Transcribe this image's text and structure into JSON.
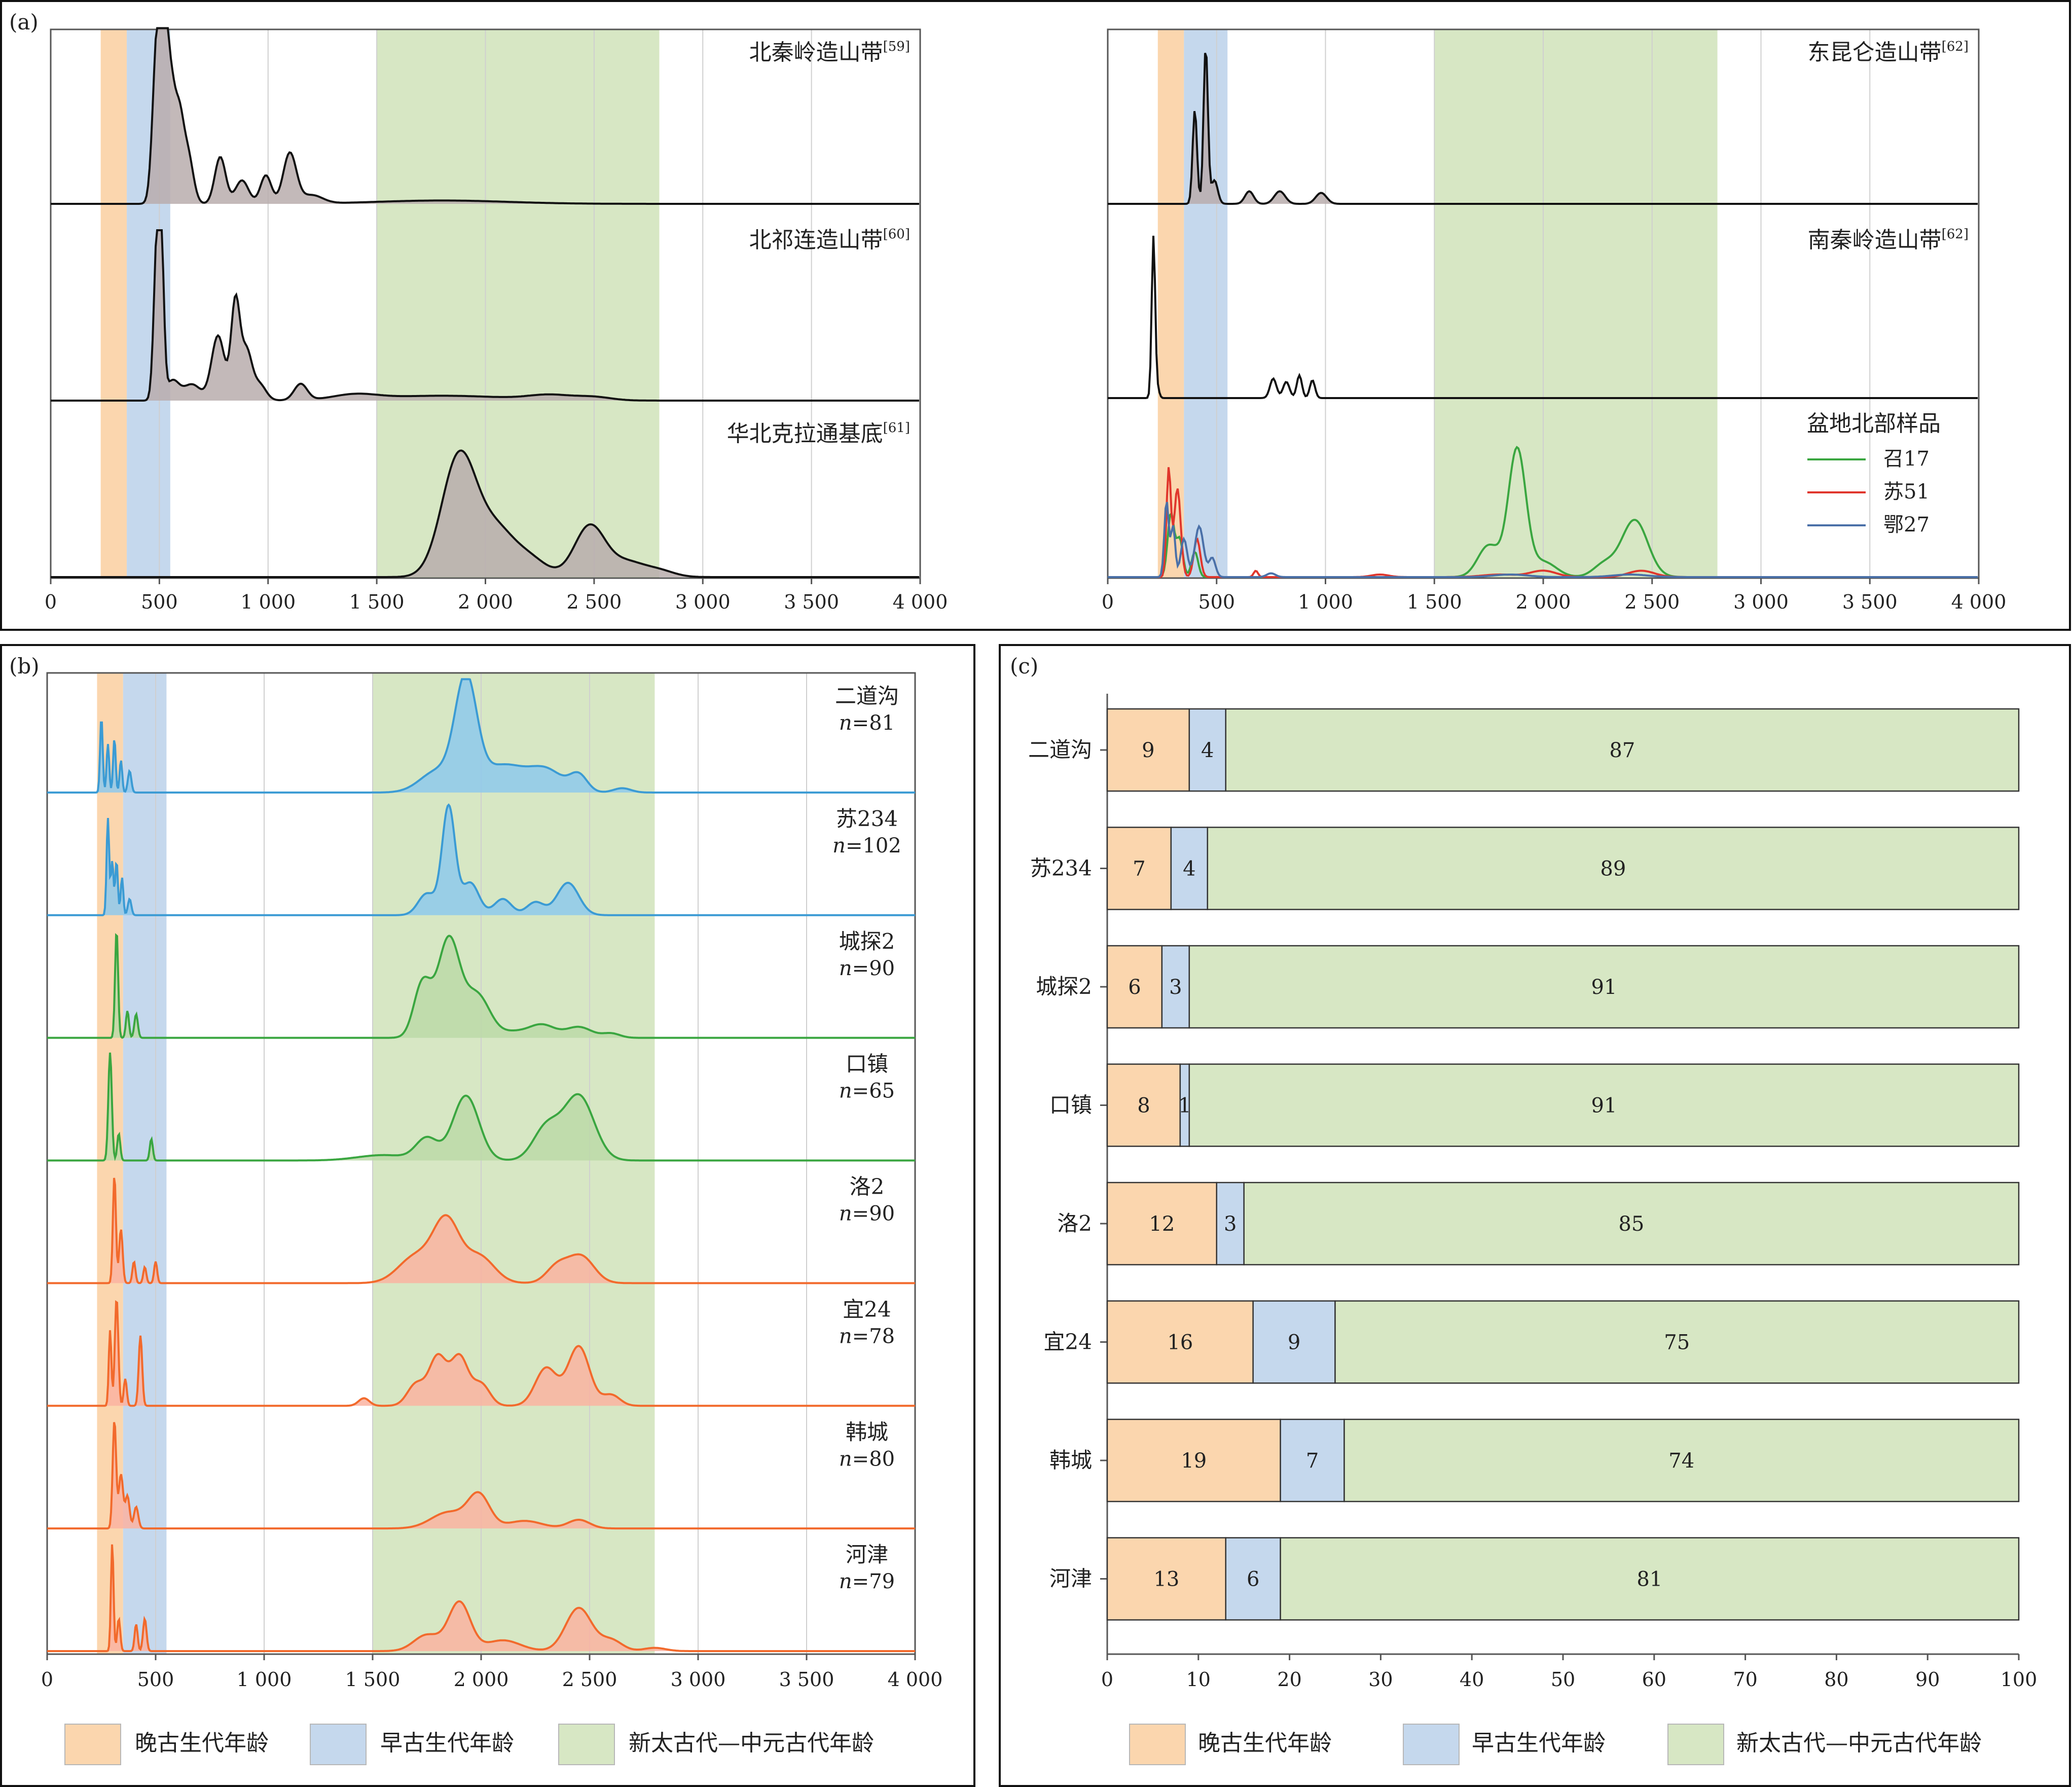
{
  "panels": {
    "a": {
      "label": "(a)"
    },
    "b": {
      "label": "(b)"
    },
    "c": {
      "label": "(c)"
    }
  },
  "age_axis": {
    "range": [
      0,
      4000
    ],
    "ticks": [
      0,
      500,
      1000,
      1500,
      2000,
      2500,
      3000,
      3500,
      4000
    ],
    "tick_labels": [
      "0",
      "500",
      "1 000",
      "1 500",
      "2 000",
      "2 500",
      "3 000",
      "3 500",
      "4 000"
    ],
    "bands": [
      {
        "name": "晚古生代年龄",
        "range": [
          230,
          350
        ],
        "color": "#fbd6ae"
      },
      {
        "name": "早古生代年龄",
        "range": [
          350,
          550
        ],
        "color": "#c5d8ed"
      },
      {
        "name": "新太古代—中元古代年龄",
        "range": [
          1500,
          2800
        ],
        "color": "#d7e7c4"
      }
    ]
  },
  "legend_bottom": {
    "items": [
      "晚古生代年龄",
      "早古生代年龄",
      "新太古代—中元古代年龄"
    ],
    "colors": [
      "#fbd6ae",
      "#c5d8ed",
      "#d7e7c4"
    ]
  },
  "chart_data": [
    {
      "id": "a-left",
      "type": "area",
      "x_range": [
        0,
        4000
      ],
      "series": [
        {
          "name": "北秦岭造山带",
          "ref": "[59]",
          "color": "#b8adad",
          "peaks": [
            [
              490,
              20,
              1.0
            ],
            [
              520,
              15,
              0.95
            ],
            [
              550,
              20,
              0.7
            ],
            [
              590,
              20,
              0.45
            ],
            [
              630,
              25,
              0.3
            ],
            [
              780,
              25,
              0.28
            ],
            [
              880,
              30,
              0.14
            ],
            [
              990,
              25,
              0.17
            ],
            [
              1100,
              30,
              0.3
            ],
            [
              1200,
              50,
              0.05
            ],
            [
              1800,
              300,
              0.02
            ]
          ]
        },
        {
          "name": "北祁连造山带",
          "ref": "[60]",
          "color": "#b8adad",
          "peaks": [
            [
              490,
              15,
              1.0
            ],
            [
              510,
              12,
              0.7
            ],
            [
              560,
              30,
              0.12
            ],
            [
              650,
              40,
              0.1
            ],
            [
              770,
              30,
              0.4
            ],
            [
              850,
              20,
              0.6
            ],
            [
              900,
              25,
              0.3
            ],
            [
              960,
              30,
              0.1
            ],
            [
              1150,
              30,
              0.1
            ],
            [
              1400,
              100,
              0.03
            ],
            [
              1800,
              300,
              0.03
            ],
            [
              2300,
              100,
              0.03
            ],
            [
              2500,
              80,
              0.02
            ]
          ]
        },
        {
          "name": "华北克拉通基底",
          "ref": "[61]",
          "color": "#b8adad",
          "peaks": [
            [
              1880,
              80,
              1.0
            ],
            [
              2050,
              80,
              0.35
            ],
            [
              2200,
              80,
              0.15
            ],
            [
              2480,
              70,
              0.42
            ],
            [
              2650,
              80,
              0.12
            ],
            [
              2800,
              70,
              0.05
            ]
          ]
        }
      ]
    },
    {
      "id": "a-right",
      "type": "area",
      "x_range": [
        0,
        4000
      ],
      "series": [
        {
          "name": "东昆仑造山带",
          "ref": "[62]",
          "color": "#b8adad",
          "peaks": [
            [
              400,
              10,
              0.6
            ],
            [
              450,
              10,
              1.0
            ],
            [
              490,
              15,
              0.15
            ],
            [
              650,
              20,
              0.08
            ],
            [
              790,
              25,
              0.08
            ],
            [
              980,
              25,
              0.07
            ]
          ]
        },
        {
          "name": "南秦岭造山带",
          "ref": "[62]",
          "color": "#ffffff",
          "peaks": [
            [
              210,
              8,
              1.0
            ],
            [
              230,
              8,
              0.05
            ],
            [
              760,
              15,
              0.12
            ],
            [
              820,
              15,
              0.1
            ],
            [
              880,
              12,
              0.14
            ],
            [
              940,
              12,
              0.11
            ]
          ]
        }
      ],
      "legend": {
        "title": "盆地北部样品",
        "series": [
          {
            "name": "召17",
            "color": "#3aa640",
            "peaks": [
              [
                290,
                15,
                0.5
              ],
              [
                330,
                15,
                0.3
              ],
              [
                400,
                15,
                0.2
              ],
              [
                1750,
                50,
                0.25
              ],
              [
                1880,
                40,
                1.0
              ],
              [
                2000,
                60,
                0.12
              ],
              [
                2280,
                50,
                0.1
              ],
              [
                2420,
                60,
                0.45
              ]
            ]
          },
          {
            "name": "苏51",
            "color": "#e0362c",
            "peaks": [
              [
                280,
                10,
                0.85
              ],
              [
                320,
                15,
                0.7
              ],
              [
                410,
                15,
                0.3
              ],
              [
                680,
                10,
                0.05
              ],
              [
                1250,
                40,
                0.02
              ],
              [
                1800,
                80,
                0.02
              ],
              [
                2000,
                60,
                0.05
              ],
              [
                2450,
                60,
                0.05
              ]
            ]
          },
          {
            "name": "鄂27",
            "color": "#4a70a8",
            "peaks": [
              [
                270,
                10,
                0.6
              ],
              [
                300,
                10,
                0.4
              ],
              [
                350,
                15,
                0.3
              ],
              [
                420,
                20,
                0.4
              ],
              [
                480,
                15,
                0.15
              ],
              [
                750,
                20,
                0.03
              ],
              [
                1850,
                80,
                0.02
              ],
              [
                2400,
                80,
                0.02
              ]
            ]
          }
        ]
      }
    },
    {
      "id": "b",
      "type": "area",
      "x_range": [
        0,
        4000
      ],
      "series": [
        {
          "name": "二道沟",
          "n": "=81",
          "color": "#3b9bd4",
          "fill": "#8ec9ec",
          "peaks": [
            [
              250,
              6,
              0.7
            ],
            [
              280,
              6,
              0.45
            ],
            [
              310,
              6,
              0.5
            ],
            [
              340,
              6,
              0.3
            ],
            [
              380,
              8,
              0.2
            ],
            [
              1800,
              80,
              0.2
            ],
            [
              1930,
              50,
              1.0
            ],
            [
              2100,
              100,
              0.25
            ],
            [
              2300,
              80,
              0.2
            ],
            [
              2450,
              40,
              0.15
            ],
            [
              2650,
              40,
              0.04
            ]
          ]
        },
        {
          "name": "苏234",
          "n": "=102",
          "color": "#3b9bd4",
          "fill": "#8ec9ec",
          "peaks": [
            [
              280,
              6,
              0.9
            ],
            [
              300,
              6,
              0.5
            ],
            [
              320,
              6,
              0.5
            ],
            [
              345,
              6,
              0.35
            ],
            [
              380,
              8,
              0.15
            ],
            [
              1750,
              40,
              0.2
            ],
            [
              1850,
              30,
              1.0
            ],
            [
              1950,
              40,
              0.3
            ],
            [
              2100,
              40,
              0.15
            ],
            [
              2250,
              40,
              0.12
            ],
            [
              2400,
              50,
              0.3
            ]
          ]
        },
        {
          "name": "城探2",
          "n": "=90",
          "color": "#3aa640",
          "fill": "#bcd9a8",
          "peaks": [
            [
              320,
              7,
              1.0
            ],
            [
              370,
              7,
              0.25
            ],
            [
              410,
              8,
              0.22
            ],
            [
              1730,
              40,
              0.5
            ],
            [
              1850,
              50,
              0.9
            ],
            [
              1980,
              60,
              0.4
            ],
            [
              2150,
              60,
              0.05
            ],
            [
              2280,
              60,
              0.12
            ],
            [
              2450,
              60,
              0.1
            ],
            [
              2600,
              40,
              0.04
            ]
          ]
        },
        {
          "name": "口镇",
          "n": "=65",
          "color": "#3aa640",
          "fill": "#bcd9a8",
          "peaks": [
            [
              290,
              8,
              1.0
            ],
            [
              330,
              7,
              0.25
            ],
            [
              480,
              7,
              0.2
            ],
            [
              1550,
              120,
              0.05
            ],
            [
              1750,
              50,
              0.2
            ],
            [
              1930,
              60,
              0.6
            ],
            [
              2300,
              60,
              0.3
            ],
            [
              2450,
              70,
              0.6
            ]
          ]
        },
        {
          "name": "洛2",
          "n": "=90",
          "color": "#f26a2c",
          "fill": "#fab3a1",
          "peaks": [
            [
              310,
              7,
              1.0
            ],
            [
              340,
              8,
              0.5
            ],
            [
              400,
              7,
              0.2
            ],
            [
              450,
              7,
              0.15
            ],
            [
              500,
              7,
              0.2
            ],
            [
              1700,
              80,
              0.25
            ],
            [
              1840,
              60,
              0.55
            ],
            [
              1990,
              70,
              0.25
            ],
            [
              2350,
              50,
              0.15
            ],
            [
              2460,
              60,
              0.25
            ]
          ]
        },
        {
          "name": "宜24",
          "n": "=78",
          "color": "#f26a2c",
          "fill": "#fab3a1",
          "peaks": [
            [
              290,
              6,
              0.7
            ],
            [
              320,
              8,
              1.0
            ],
            [
              360,
              7,
              0.25
            ],
            [
              430,
              8,
              0.65
            ],
            [
              1460,
              25,
              0.07
            ],
            [
              1700,
              40,
              0.2
            ],
            [
              1800,
              40,
              0.45
            ],
            [
              1900,
              40,
              0.45
            ],
            [
              2000,
              40,
              0.2
            ],
            [
              2300,
              50,
              0.35
            ],
            [
              2450,
              50,
              0.55
            ],
            [
              2600,
              40,
              0.1
            ]
          ]
        },
        {
          "name": "韩城",
          "n": "=80",
          "color": "#f26a2c",
          "fill": "#fab3a1",
          "peaks": [
            [
              310,
              8,
              1.0
            ],
            [
              340,
              10,
              0.5
            ],
            [
              370,
              10,
              0.3
            ],
            [
              410,
              10,
              0.2
            ],
            [
              1850,
              80,
              0.15
            ],
            [
              1990,
              50,
              0.3
            ],
            [
              2200,
              80,
              0.07
            ],
            [
              2450,
              50,
              0.08
            ]
          ]
        },
        {
          "name": "河津",
          "n": "=79",
          "color": "#f26a2c",
          "fill": "#fab3a1",
          "peaks": [
            [
              300,
              6,
              1.0
            ],
            [
              330,
              7,
              0.3
            ],
            [
              410,
              7,
              0.25
            ],
            [
              450,
              8,
              0.3
            ],
            [
              1750,
              60,
              0.15
            ],
            [
              1900,
              50,
              0.45
            ],
            [
              2100,
              80,
              0.1
            ],
            [
              2450,
              60,
              0.4
            ],
            [
              2600,
              50,
              0.1
            ],
            [
              2800,
              50,
              0.03
            ]
          ]
        }
      ]
    },
    {
      "id": "c",
      "type": "bar",
      "orientation": "horizontal",
      "stacked": true,
      "categories": [
        "二道沟",
        "苏234",
        "城探2",
        "口镇",
        "洛2",
        "宜24",
        "韩城",
        "河津"
      ],
      "series": [
        {
          "name": "晚古生代年龄",
          "color": "#fbd6ae",
          "values": [
            9,
            7,
            6,
            8,
            12,
            16,
            19,
            13
          ]
        },
        {
          "name": "早古生代年龄",
          "color": "#c5d8ed",
          "values": [
            4,
            4,
            3,
            1,
            3,
            9,
            7,
            6
          ]
        },
        {
          "name": "新太古代—中元古代年龄",
          "color": "#d7e7c4",
          "values": [
            87,
            89,
            91,
            91,
            85,
            75,
            74,
            81
          ]
        }
      ],
      "xlim": [
        0,
        100
      ],
      "x_ticks": [
        0,
        10,
        20,
        30,
        40,
        50,
        60,
        70,
        80,
        90,
        100
      ]
    }
  ]
}
